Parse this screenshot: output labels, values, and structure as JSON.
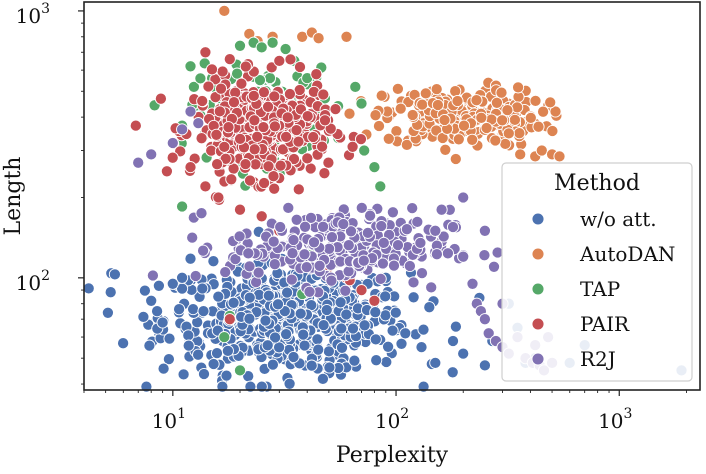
{
  "chart_data": {
    "type": "scatter",
    "xlabel": "Perplexity",
    "ylabel": "Length",
    "xscale": "log",
    "yscale": "log",
    "xlim": [
      4,
      2300
    ],
    "ylim": [
      38,
      1080
    ],
    "xticks": [
      {
        "value": 10,
        "base": "10",
        "exp": "1"
      },
      {
        "value": 100,
        "base": "10",
        "exp": "2"
      },
      {
        "value": 1000,
        "base": "10",
        "exp": "3"
      }
    ],
    "yticks": [
      {
        "value": 100,
        "base": "10",
        "exp": "2"
      },
      {
        "value": 1000,
        "base": "10",
        "exp": "3"
      }
    ],
    "grid": false,
    "legend": {
      "title": "Method",
      "placement": "right",
      "entries": [
        "w/o att.",
        "AutoDAN",
        "TAP",
        "PAIR",
        "R2J"
      ]
    },
    "series": [
      {
        "name": "w/o att.",
        "color": "#4c72b0",
        "cluster": {
          "x_center": 32,
          "x_spread": 0.55,
          "y_center": 70,
          "y_spread": 0.2,
          "count": 620
        },
        "points": [
          [
            5.3,
            104
          ],
          [
            5.5,
            103
          ],
          [
            8,
            82
          ],
          [
            8.5,
            75
          ],
          [
            9,
            68
          ],
          [
            10,
            95
          ],
          [
            11,
            100
          ],
          [
            12,
            118
          ],
          [
            14,
            125
          ],
          [
            150,
            48
          ],
          [
            180,
            58
          ],
          [
            200,
            52
          ],
          [
            250,
            47
          ],
          [
            270,
            58
          ],
          [
            300,
            55
          ],
          [
            320,
            80
          ],
          [
            350,
            65
          ],
          [
            380,
            48
          ],
          [
            420,
            50
          ],
          [
            600,
            48
          ],
          [
            700,
            56
          ],
          [
            1900,
            45
          ],
          [
            110,
            62
          ],
          [
            130,
            55
          ],
          [
            90,
            100
          ],
          [
            70,
            110
          ]
        ]
      },
      {
        "name": "AutoDAN",
        "color": "#dd8452",
        "cluster": {
          "x_center": 200,
          "x_spread": 0.35,
          "y_center": 400,
          "y_spread": 0.11,
          "count": 270
        },
        "points": [
          [
            17,
            1000
          ],
          [
            22,
            820
          ],
          [
            24,
            770
          ],
          [
            28,
            800
          ],
          [
            38,
            800
          ],
          [
            42,
            830
          ],
          [
            45,
            790
          ],
          [
            60,
            800
          ],
          [
            360,
            290
          ],
          [
            420,
            285
          ],
          [
            450,
            300
          ],
          [
            500,
            290
          ],
          [
            540,
            285
          ]
        ]
      },
      {
        "name": "TAP",
        "color": "#55a868",
        "cluster": {
          "x_center": 25,
          "x_spread": 0.32,
          "y_center": 410,
          "y_spread": 0.17,
          "count": 150
        },
        "points": [
          [
            12,
            620
          ],
          [
            15,
            560
          ],
          [
            20,
            740
          ],
          [
            23,
            760
          ],
          [
            25,
            730
          ],
          [
            28,
            760
          ],
          [
            32,
            720
          ],
          [
            35,
            650
          ],
          [
            40,
            560
          ],
          [
            48,
            470
          ],
          [
            55,
            440
          ],
          [
            70,
            450
          ],
          [
            72,
            300
          ],
          [
            80,
            260
          ],
          [
            85,
            220
          ],
          [
            11,
            185
          ],
          [
            42,
            130
          ],
          [
            50,
            120
          ],
          [
            38,
            87
          ],
          [
            18,
            72
          ],
          [
            17,
            60
          ],
          [
            20,
            45
          ]
        ]
      },
      {
        "name": "PAIR",
        "color": "#c44e52",
        "cluster": {
          "x_center": 25,
          "x_spread": 0.3,
          "y_center": 360,
          "y_spread": 0.18,
          "count": 400
        },
        "points": [
          [
            14,
            700
          ],
          [
            18,
            660
          ],
          [
            30,
            650
          ],
          [
            12,
            260
          ],
          [
            14,
            220
          ],
          [
            16,
            200
          ],
          [
            20,
            180
          ],
          [
            25,
            170
          ],
          [
            30,
            150
          ],
          [
            35,
            140
          ],
          [
            40,
            120
          ],
          [
            50,
            110
          ],
          [
            60,
            100
          ],
          [
            70,
            90
          ],
          [
            80,
            82
          ],
          [
            18,
            70
          ],
          [
            62,
            98
          ]
        ]
      },
      {
        "name": "R2J",
        "color": "#8172b3",
        "cluster": {
          "x_center": 55,
          "x_spread": 0.5,
          "y_center": 130,
          "y_spread": 0.14,
          "count": 270
        },
        "points": [
          [
            7,
            270
          ],
          [
            8,
            290
          ],
          [
            10,
            320
          ],
          [
            11,
            360
          ],
          [
            12,
            420
          ],
          [
            13,
            380
          ],
          [
            150,
            150
          ],
          [
            180,
            155
          ],
          [
            200,
            120
          ],
          [
            220,
            95
          ],
          [
            230,
            80
          ],
          [
            240,
            75
          ],
          [
            250,
            70
          ],
          [
            260,
            62
          ],
          [
            280,
            58
          ],
          [
            300,
            55
          ],
          [
            320,
            52
          ],
          [
            350,
            60
          ],
          [
            380,
            50
          ],
          [
            410,
            48
          ],
          [
            420,
            56
          ],
          [
            440,
            47
          ],
          [
            460,
            45
          ],
          [
            500,
            48
          ],
          [
            480,
            60
          ],
          [
            300,
            80
          ],
          [
            250,
            150
          ],
          [
            200,
            200
          ],
          [
            160,
            180
          ]
        ]
      }
    ]
  }
}
